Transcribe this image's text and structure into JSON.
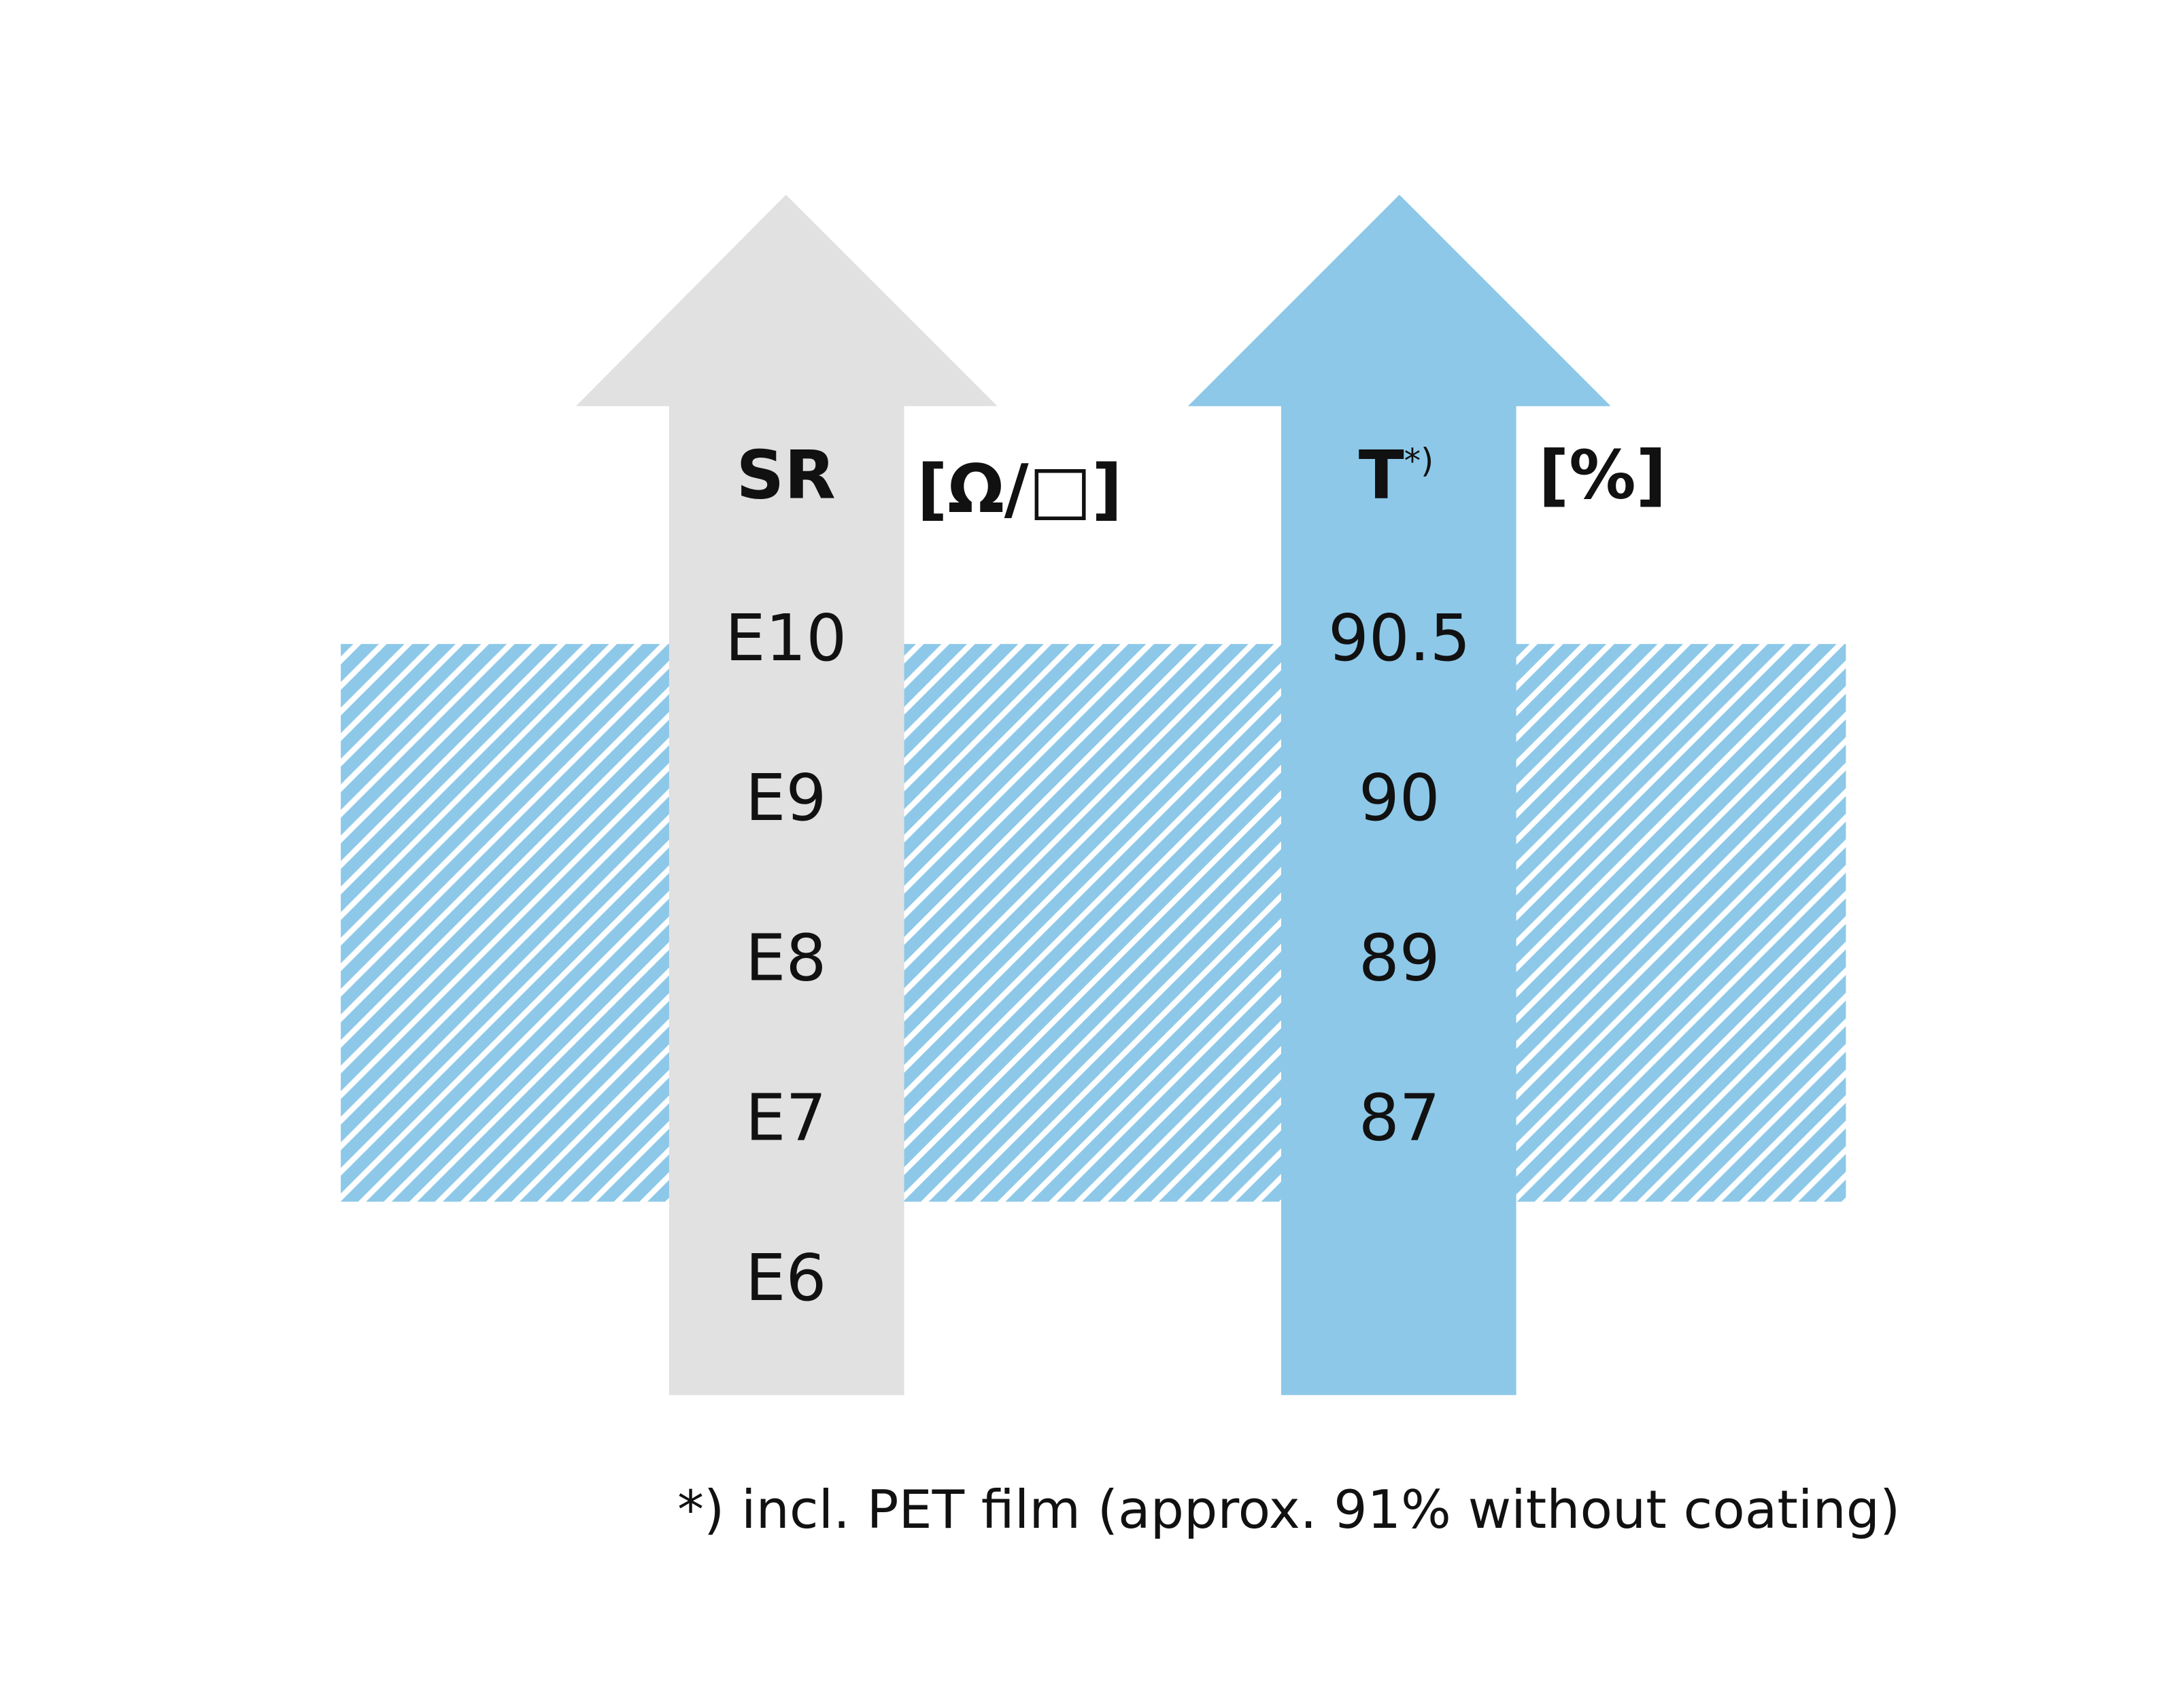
{
  "columns": [
    {
      "header": "SR",
      "unit": "[Ω/□]",
      "values": [
        "E10",
        "E9",
        "E8",
        "E7",
        "E6"
      ]
    },
    {
      "header": "T",
      "header_note": "*)",
      "unit": "[%]",
      "values": [
        "90.5",
        "90",
        "89",
        "87"
      ]
    }
  ],
  "footnote": "*) incl. PET film (approx. 91% without coating)"
}
